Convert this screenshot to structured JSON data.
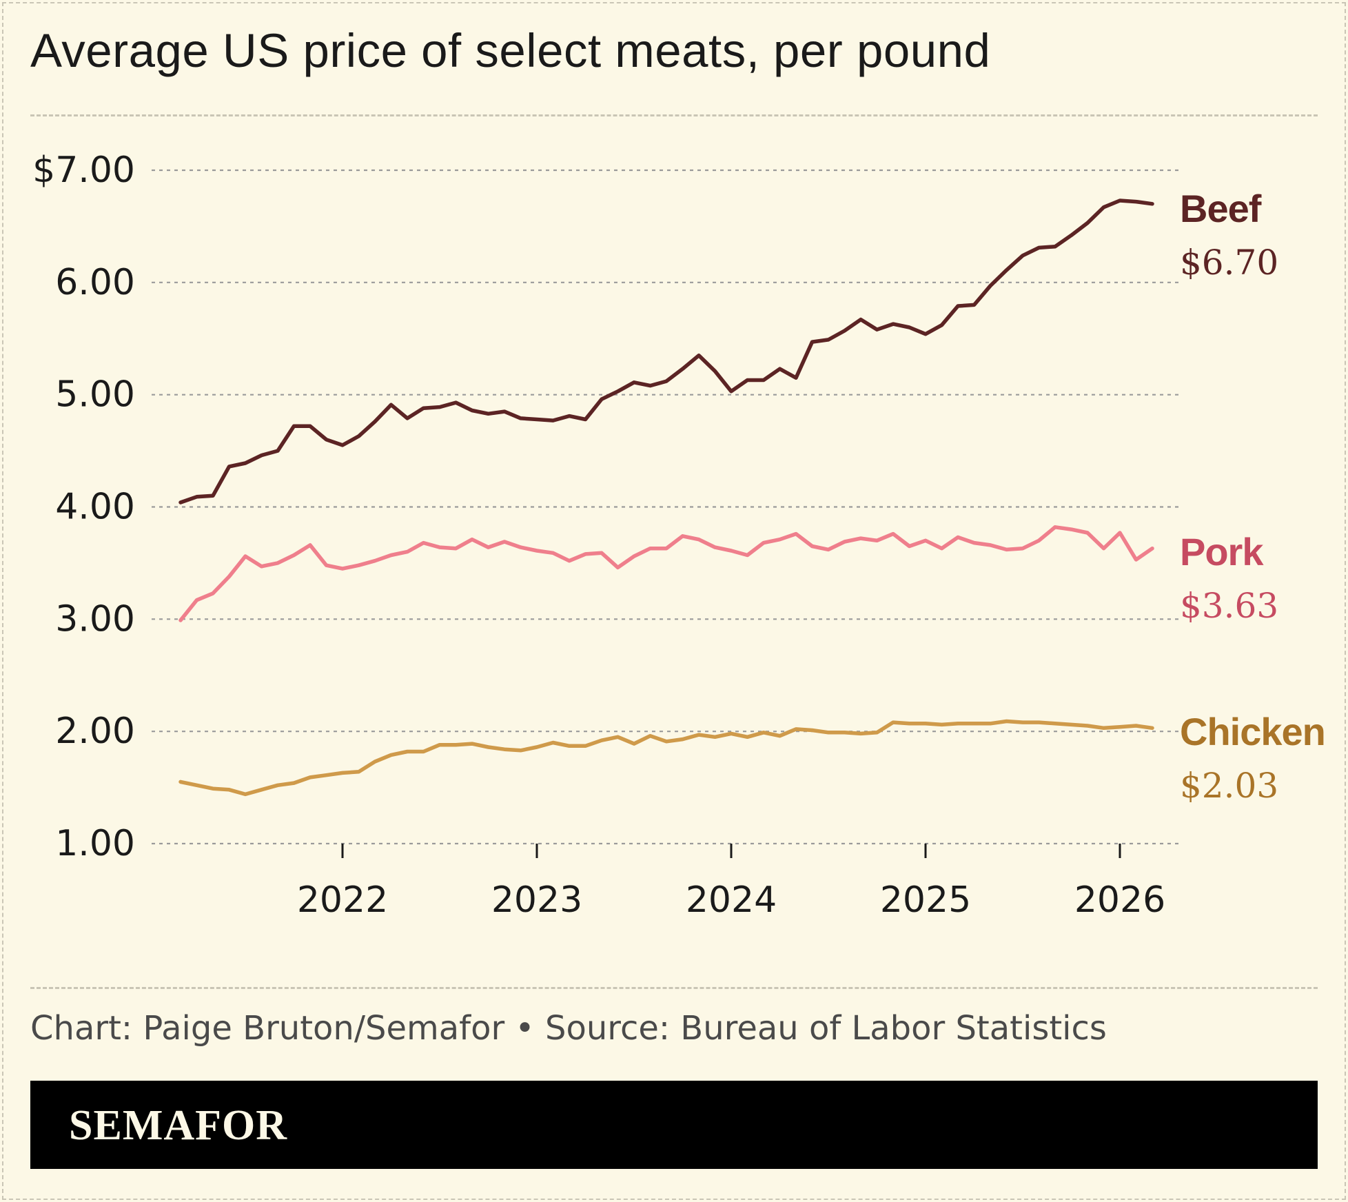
{
  "header": {
    "title": "Average US price of select meats, per pound"
  },
  "footer": {
    "source": "Chart: Paige Bruton/Semafor • Source: Bureau of Labor Statistics",
    "brand": "SEMAFOR"
  },
  "colors": {
    "background": "#fcf8e6",
    "beef": "#5c2424",
    "pork": "#ef7f8c",
    "pork_label": "#c64b61",
    "chicken": "#cf9a4a",
    "chicken_label": "#a97428",
    "gridline": "#9a9a9a"
  },
  "chart_data": {
    "type": "line",
    "title": "Average US price of select meats, per pound",
    "xlabel": "",
    "ylabel": "",
    "ylim": [
      1,
      7
    ],
    "xlim": [
      "2021-01",
      "2026-02"
    ],
    "grid": true,
    "y_ticks": [
      "$7.00",
      "6.00",
      "5.00",
      "4.00",
      "3.00",
      "2.00",
      "1.00"
    ],
    "y_tick_values": [
      7,
      6,
      5,
      4,
      3,
      2,
      1
    ],
    "x_ticks": [
      "2022",
      "2023",
      "2024",
      "2025",
      "2026"
    ],
    "x": [
      "2021-03",
      "2021-04",
      "2021-05",
      "2021-06",
      "2021-07",
      "2021-08",
      "2021-09",
      "2021-10",
      "2021-11",
      "2021-12",
      "2022-01",
      "2022-02",
      "2022-03",
      "2022-04",
      "2022-05",
      "2022-06",
      "2022-07",
      "2022-08",
      "2022-09",
      "2022-10",
      "2022-11",
      "2022-12",
      "2023-01",
      "2023-02",
      "2023-03",
      "2023-04",
      "2023-05",
      "2023-06",
      "2023-07",
      "2023-08",
      "2023-09",
      "2023-10",
      "2023-11",
      "2023-12",
      "2024-01",
      "2024-02",
      "2024-03",
      "2024-04",
      "2024-05",
      "2024-06",
      "2024-07",
      "2024-08",
      "2024-09",
      "2024-10",
      "2024-11",
      "2024-12",
      "2025-01",
      "2025-02",
      "2025-03",
      "2025-04",
      "2025-05",
      "2025-06",
      "2025-07",
      "2025-08",
      "2025-09",
      "2025-10",
      "2025-11",
      "2025-12",
      "2026-01",
      "2026-02",
      "2026-03"
    ],
    "series": [
      {
        "name": "Beef",
        "end_label": "$6.70",
        "values": [
          4.04,
          4.09,
          4.1,
          4.36,
          4.39,
          4.46,
          4.5,
          4.72,
          4.72,
          4.6,
          4.55,
          4.63,
          4.76,
          4.91,
          4.79,
          4.88,
          4.89,
          4.93,
          4.86,
          4.83,
          4.85,
          4.79,
          4.78,
          4.77,
          4.81,
          4.78,
          4.96,
          5.03,
          5.11,
          5.08,
          5.12,
          5.23,
          5.35,
          5.21,
          5.03,
          5.13,
          5.13,
          5.23,
          5.15,
          5.47,
          5.49,
          5.57,
          5.67,
          5.58,
          5.63,
          5.6,
          5.54,
          5.62,
          5.79,
          5.8,
          5.97,
          6.11,
          6.24,
          6.31,
          6.32,
          6.42,
          6.53,
          6.67,
          6.73,
          6.72,
          6.7
        ]
      },
      {
        "name": "Pork",
        "end_label": "$3.63",
        "values": [
          2.99,
          3.17,
          3.23,
          3.38,
          3.56,
          3.47,
          3.5,
          3.57,
          3.66,
          3.48,
          3.45,
          3.48,
          3.52,
          3.57,
          3.6,
          3.68,
          3.64,
          3.63,
          3.71,
          3.64,
          3.69,
          3.64,
          3.61,
          3.59,
          3.52,
          3.58,
          3.59,
          3.46,
          3.56,
          3.63,
          3.63,
          3.74,
          3.71,
          3.64,
          3.61,
          3.57,
          3.68,
          3.71,
          3.76,
          3.65,
          3.62,
          3.69,
          3.72,
          3.7,
          3.76,
          3.65,
          3.7,
          3.63,
          3.73,
          3.68,
          3.66,
          3.62,
          3.63,
          3.7,
          3.82,
          3.8,
          3.77,
          3.63,
          3.77,
          3.53,
          3.63
        ]
      },
      {
        "name": "Chicken",
        "end_label": "$2.03",
        "values": [
          1.55,
          1.52,
          1.49,
          1.48,
          1.44,
          1.48,
          1.52,
          1.54,
          1.59,
          1.61,
          1.63,
          1.64,
          1.73,
          1.79,
          1.82,
          1.82,
          1.88,
          1.88,
          1.89,
          1.86,
          1.84,
          1.83,
          1.86,
          1.9,
          1.87,
          1.87,
          1.92,
          1.95,
          1.89,
          1.96,
          1.91,
          1.93,
          1.97,
          1.95,
          1.98,
          1.95,
          1.99,
          1.96,
          2.02,
          2.01,
          1.99,
          1.99,
          1.98,
          1.99,
          2.08,
          2.07,
          2.07,
          2.06,
          2.07,
          2.07,
          2.07,
          2.09,
          2.08,
          2.08,
          2.07,
          2.06,
          2.05,
          2.03,
          2.04,
          2.05,
          2.03
        ]
      }
    ]
  }
}
